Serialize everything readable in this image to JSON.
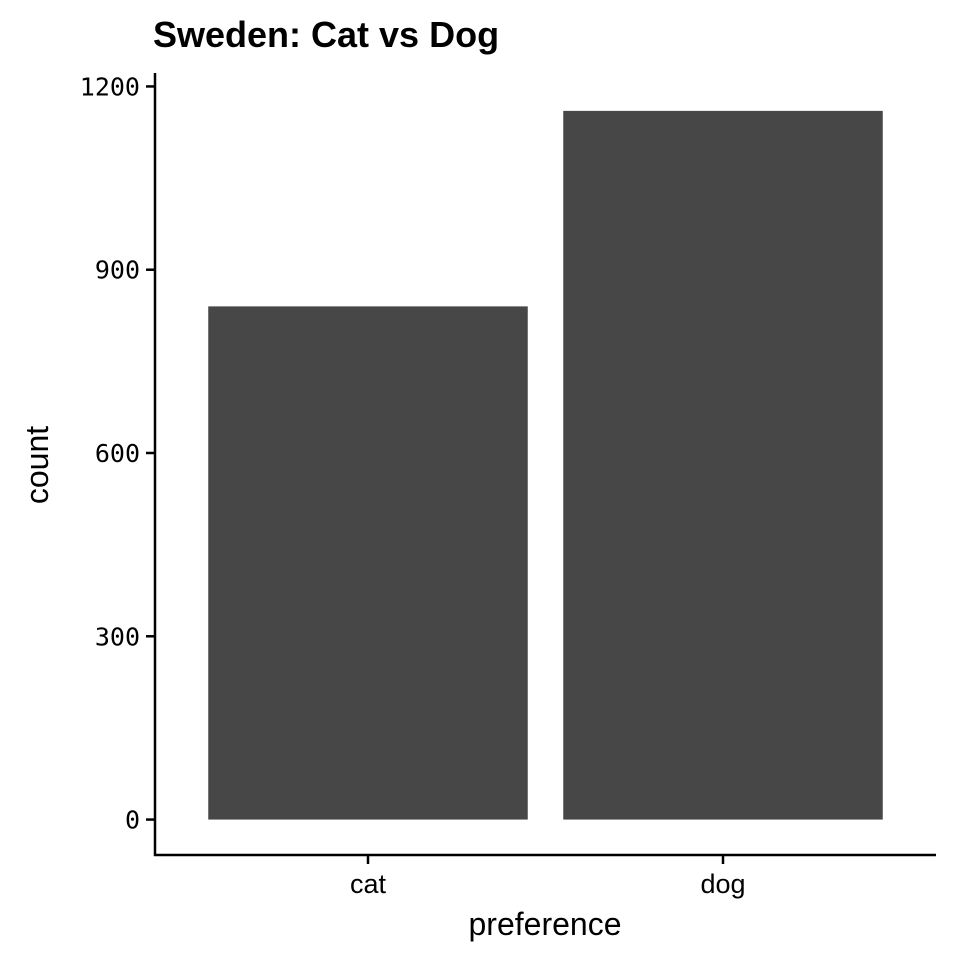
{
  "chart_data": {
    "type": "bar",
    "title": "Sweden: Cat vs Dog",
    "xlabel": "preference",
    "ylabel": "count",
    "categories": [
      "cat",
      "dog"
    ],
    "values": [
      840,
      1160
    ],
    "ylim": [
      -58,
      1222
    ],
    "yticks": [
      "0",
      "300",
      "600",
      "900",
      "1200"
    ],
    "grid": false,
    "bar_color": "#474747"
  }
}
